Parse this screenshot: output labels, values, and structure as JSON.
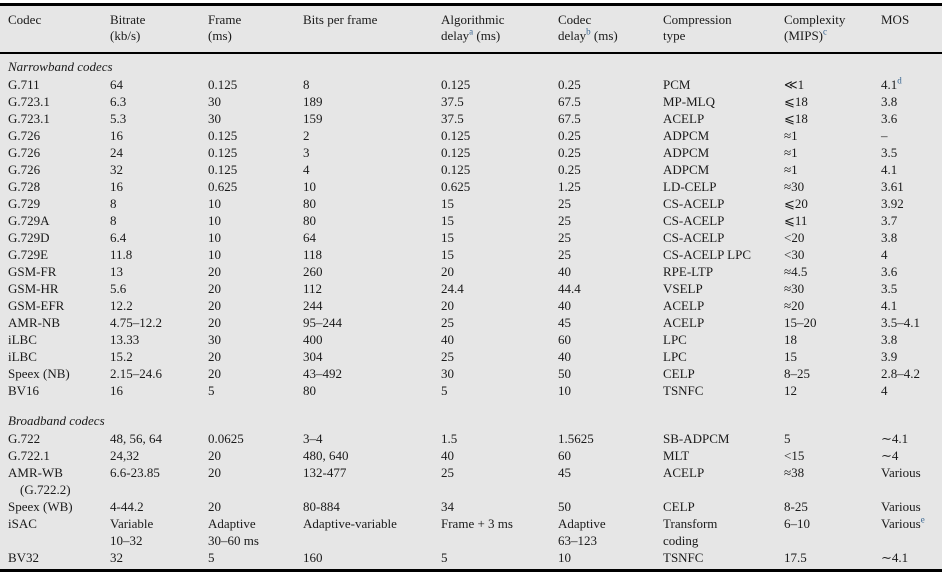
{
  "page": {
    "table_background": "#e6e6e6",
    "rule_color": "#000000",
    "text_color": "#1a1a1a",
    "footnote_marker_color": "#36638f"
  },
  "table": {
    "col_ids": [
      "codec",
      "bitrate",
      "frame",
      "bits-per-frame",
      "algorithmic-delay",
      "codec-delay",
      "compression-type",
      "complexity",
      "mos"
    ],
    "headers": [
      {
        "line1": "Codec",
        "line2": ""
      },
      {
        "line1": "Bitrate",
        "line2": "(kb/s)"
      },
      {
        "line1": "Frame",
        "line2": "(ms)"
      },
      {
        "line1": "Bits per frame",
        "line2": ""
      },
      {
        "line1": "Algorithmic",
        "line2_pre": "delay",
        "sup": "a",
        "line2_post": " (ms)"
      },
      {
        "line1": "Codec",
        "line2_pre": "delay",
        "sup": "b",
        "line2_post": " (ms)"
      },
      {
        "line1": "Compression",
        "line2": "type"
      },
      {
        "line1": "Complexity",
        "line2_pre": "(MIPS)",
        "sup": "c",
        "line2_post": ""
      },
      {
        "line1": "MOS",
        "line2": ""
      }
    ],
    "sections": [
      {
        "title": "Narrowband codecs",
        "rows": [
          {
            "cells": [
              {
                "t": "G.711"
              },
              {
                "t": "64"
              },
              {
                "t": "0.125"
              },
              {
                "t": "8"
              },
              {
                "t": "0.125"
              },
              {
                "t": "0.25"
              },
              {
                "t": "PCM"
              },
              {
                "t": "≪1"
              },
              {
                "t": "4.1",
                "sup": "d"
              }
            ]
          },
          {
            "cells": [
              {
                "t": "G.723.1"
              },
              {
                "t": "6.3"
              },
              {
                "t": "30"
              },
              {
                "t": "189"
              },
              {
                "t": "37.5"
              },
              {
                "t": "67.5"
              },
              {
                "t": "MP-MLQ"
              },
              {
                "t": "⩽18"
              },
              {
                "t": "3.8"
              }
            ]
          },
          {
            "cells": [
              {
                "t": "G.723.1"
              },
              {
                "t": "5.3"
              },
              {
                "t": "30"
              },
              {
                "t": "159"
              },
              {
                "t": "37.5"
              },
              {
                "t": "67.5"
              },
              {
                "t": "ACELP"
              },
              {
                "t": "⩽18"
              },
              {
                "t": "3.6"
              }
            ]
          },
          {
            "cells": [
              {
                "t": "G.726"
              },
              {
                "t": "16"
              },
              {
                "t": "0.125"
              },
              {
                "t": "2"
              },
              {
                "t": "0.125"
              },
              {
                "t": "0.25"
              },
              {
                "t": "ADPCM"
              },
              {
                "t": "≈1"
              },
              {
                "t": "–"
              }
            ]
          },
          {
            "cells": [
              {
                "t": "G.726"
              },
              {
                "t": "24"
              },
              {
                "t": "0.125"
              },
              {
                "t": "3"
              },
              {
                "t": "0.125"
              },
              {
                "t": "0.25"
              },
              {
                "t": "ADPCM"
              },
              {
                "t": "≈1"
              },
              {
                "t": "3.5"
              }
            ]
          },
          {
            "cells": [
              {
                "t": "G.726"
              },
              {
                "t": "32"
              },
              {
                "t": "0.125"
              },
              {
                "t": "4"
              },
              {
                "t": "0.125"
              },
              {
                "t": "0.25"
              },
              {
                "t": "ADPCM"
              },
              {
                "t": "≈1"
              },
              {
                "t": "4.1"
              }
            ]
          },
          {
            "cells": [
              {
                "t": "G.728"
              },
              {
                "t": "16"
              },
              {
                "t": "0.625"
              },
              {
                "t": "10"
              },
              {
                "t": "0.625"
              },
              {
                "t": "1.25"
              },
              {
                "t": "LD-CELP"
              },
              {
                "t": "≈30"
              },
              {
                "t": "3.61"
              }
            ]
          },
          {
            "cells": [
              {
                "t": "G.729"
              },
              {
                "t": "8"
              },
              {
                "t": "10"
              },
              {
                "t": "80"
              },
              {
                "t": "15"
              },
              {
                "t": "25"
              },
              {
                "t": "CS-ACELP"
              },
              {
                "t": "⩽20"
              },
              {
                "t": "3.92"
              }
            ]
          },
          {
            "cells": [
              {
                "t": "G.729A"
              },
              {
                "t": "8"
              },
              {
                "t": "10"
              },
              {
                "t": "80"
              },
              {
                "t": "15"
              },
              {
                "t": "25"
              },
              {
                "t": "CS-ACELP"
              },
              {
                "t": "⩽11"
              },
              {
                "t": "3.7"
              }
            ]
          },
          {
            "cells": [
              {
                "t": "G.729D"
              },
              {
                "t": "6.4"
              },
              {
                "t": "10"
              },
              {
                "t": "64"
              },
              {
                "t": "15"
              },
              {
                "t": "25"
              },
              {
                "t": "CS-ACELP"
              },
              {
                "t": "<20"
              },
              {
                "t": "3.8"
              }
            ]
          },
          {
            "cells": [
              {
                "t": "G.729E"
              },
              {
                "t": "11.8"
              },
              {
                "t": "10"
              },
              {
                "t": "118"
              },
              {
                "t": "15"
              },
              {
                "t": "25"
              },
              {
                "t": "CS-ACELP LPC"
              },
              {
                "t": "<30"
              },
              {
                "t": "4"
              }
            ]
          },
          {
            "cells": [
              {
                "t": "GSM-FR"
              },
              {
                "t": "13"
              },
              {
                "t": "20"
              },
              {
                "t": "260"
              },
              {
                "t": "20"
              },
              {
                "t": "40"
              },
              {
                "t": "RPE-LTP"
              },
              {
                "t": "≈4.5"
              },
              {
                "t": "3.6"
              }
            ]
          },
          {
            "cells": [
              {
                "t": "GSM-HR"
              },
              {
                "t": "5.6"
              },
              {
                "t": "20"
              },
              {
                "t": "112"
              },
              {
                "t": "24.4"
              },
              {
                "t": "44.4"
              },
              {
                "t": "VSELP"
              },
              {
                "t": "≈30"
              },
              {
                "t": "3.5"
              }
            ]
          },
          {
            "cells": [
              {
                "t": "GSM-EFR"
              },
              {
                "t": "12.2"
              },
              {
                "t": "20"
              },
              {
                "t": "244"
              },
              {
                "t": "20"
              },
              {
                "t": "40"
              },
              {
                "t": "ACELP"
              },
              {
                "t": "≈20"
              },
              {
                "t": "4.1"
              }
            ]
          },
          {
            "cells": [
              {
                "t": "AMR-NB"
              },
              {
                "t": "4.75–12.2"
              },
              {
                "t": "20"
              },
              {
                "t": "95–244"
              },
              {
                "t": "25"
              },
              {
                "t": "45"
              },
              {
                "t": "ACELP"
              },
              {
                "t": "15–20"
              },
              {
                "t": "3.5–4.1"
              }
            ]
          },
          {
            "cells": [
              {
                "t": "iLBC"
              },
              {
                "t": "13.33"
              },
              {
                "t": "30"
              },
              {
                "t": "400"
              },
              {
                "t": "40"
              },
              {
                "t": "60"
              },
              {
                "t": "LPC"
              },
              {
                "t": "18"
              },
              {
                "t": "3.8"
              }
            ]
          },
          {
            "cells": [
              {
                "t": "iLBC"
              },
              {
                "t": "15.2"
              },
              {
                "t": "20"
              },
              {
                "t": "304"
              },
              {
                "t": "25"
              },
              {
                "t": "40"
              },
              {
                "t": "LPC"
              },
              {
                "t": "15"
              },
              {
                "t": "3.9"
              }
            ]
          },
          {
            "cells": [
              {
                "t": "Speex (NB)"
              },
              {
                "t": "2.15–24.6"
              },
              {
                "t": "20"
              },
              {
                "t": "43–492"
              },
              {
                "t": "30"
              },
              {
                "t": "50"
              },
              {
                "t": "CELP"
              },
              {
                "t": "8–25"
              },
              {
                "t": "2.8–4.2"
              }
            ]
          },
          {
            "cells": [
              {
                "t": "BV16"
              },
              {
                "t": "16"
              },
              {
                "t": "5"
              },
              {
                "t": "80"
              },
              {
                "t": "5"
              },
              {
                "t": "10"
              },
              {
                "t": "TSNFC"
              },
              {
                "t": "12"
              },
              {
                "t": "4"
              }
            ]
          }
        ]
      },
      {
        "title": "Broadband codecs",
        "rows": [
          {
            "cells": [
              {
                "t": "G.722"
              },
              {
                "t": "48, 56, 64"
              },
              {
                "t": "0.0625"
              },
              {
                "t": "3–4"
              },
              {
                "t": "1.5"
              },
              {
                "t": "1.5625"
              },
              {
                "t": "SB-ADPCM"
              },
              {
                "t": "5"
              },
              {
                "t": "∼4.1"
              }
            ]
          },
          {
            "cells": [
              {
                "t": "G.722.1"
              },
              {
                "t": "24,32"
              },
              {
                "t": "20"
              },
              {
                "t": "480, 640"
              },
              {
                "t": "40"
              },
              {
                "t": "60"
              },
              {
                "t": "MLT"
              },
              {
                "t": "<15"
              },
              {
                "t": "∼4"
              }
            ]
          },
          {
            "cells": [
              {
                "t": "AMR-WB",
                "t2": "(G.722.2)"
              },
              {
                "t": "6.6-23.85"
              },
              {
                "t": "20"
              },
              {
                "t": "132-477"
              },
              {
                "t": "25"
              },
              {
                "t": "45"
              },
              {
                "t": "ACELP"
              },
              {
                "t": "≈38"
              },
              {
                "t": "Various"
              }
            ]
          },
          {
            "cells": [
              {
                "t": "Speex (WB)"
              },
              {
                "t": "4-44.2"
              },
              {
                "t": "20"
              },
              {
                "t": "80-884"
              },
              {
                "t": "34"
              },
              {
                "t": "50"
              },
              {
                "t": "CELP"
              },
              {
                "t": "8-25"
              },
              {
                "t": "Various"
              }
            ]
          },
          {
            "cells": [
              {
                "t": "iSAC"
              },
              {
                "t": "Variable",
                "t2": "10–32"
              },
              {
                "t": "Adaptive",
                "t2": "30–60 ms"
              },
              {
                "t": "Adaptive-variable"
              },
              {
                "t": "Frame + 3 ms"
              },
              {
                "t": "Adaptive",
                "t2": "63–123"
              },
              {
                "t": "Transform",
                "t2": "coding"
              },
              {
                "t": "6–10"
              },
              {
                "t": "Various",
                "sup": "e"
              }
            ]
          },
          {
            "cells": [
              {
                "t": "BV32"
              },
              {
                "t": "32"
              },
              {
                "t": "5"
              },
              {
                "t": "160"
              },
              {
                "t": "5"
              },
              {
                "t": "10"
              },
              {
                "t": "TSNFC"
              },
              {
                "t": "17.5"
              },
              {
                "t": "∼4.1"
              }
            ]
          }
        ]
      }
    ]
  }
}
